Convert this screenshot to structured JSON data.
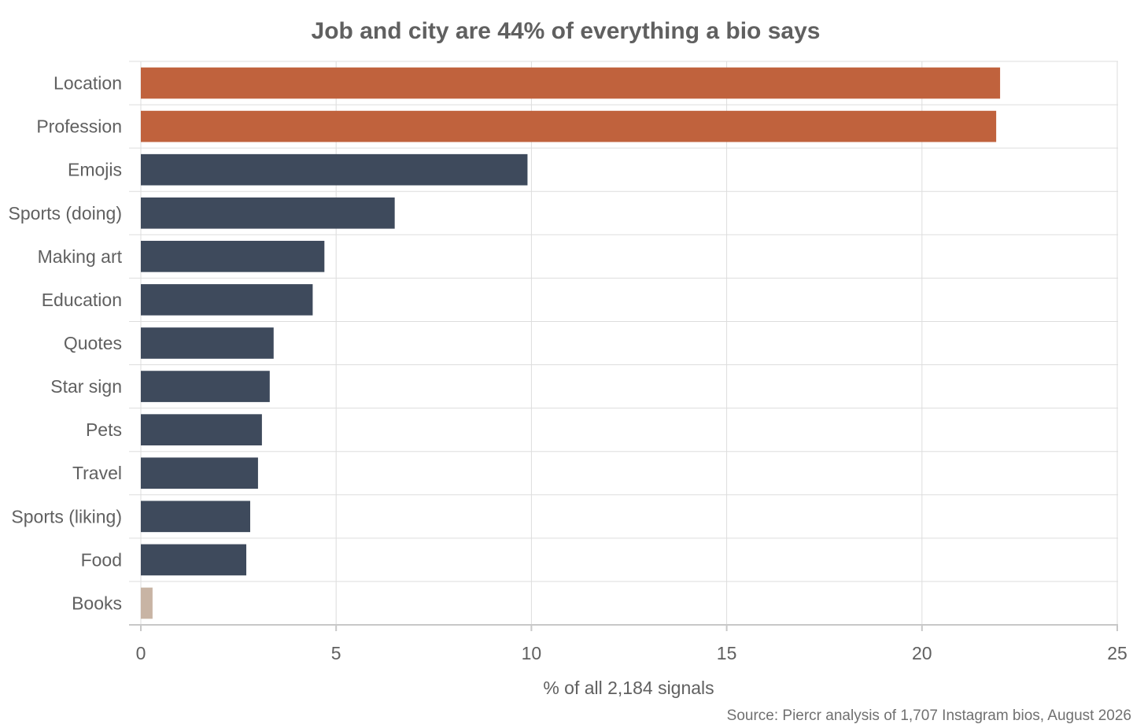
{
  "chart_data": {
    "type": "bar",
    "orientation": "horizontal",
    "title": "Job and city are 44% of everything a bio says",
    "xlabel": "% of all 2,184 signals",
    "ylabel": "",
    "source": "Source: Piercr analysis of 1,707 Instagram bios, August 2026",
    "xlim": [
      0,
      25
    ],
    "xticks": [
      0,
      5,
      10,
      15,
      20,
      25
    ],
    "grid": true,
    "categories": [
      "Location",
      "Profession",
      "Emojis",
      "Sports (doing)",
      "Making art",
      "Education",
      "Quotes",
      "Star sign",
      "Pets",
      "Travel",
      "Sports (liking)",
      "Food",
      "Books"
    ],
    "values": [
      22.0,
      21.9,
      9.9,
      6.5,
      4.7,
      4.4,
      3.4,
      3.3,
      3.1,
      3.0,
      2.8,
      2.7,
      0.3
    ],
    "bar_groups": [
      "highlight",
      "highlight",
      "default",
      "default",
      "default",
      "default",
      "default",
      "default",
      "default",
      "default",
      "default",
      "default",
      "muted"
    ],
    "colors": {
      "highlight": "#c0623d",
      "default": "#3e4a5c",
      "muted": "#c8b4a4"
    }
  }
}
